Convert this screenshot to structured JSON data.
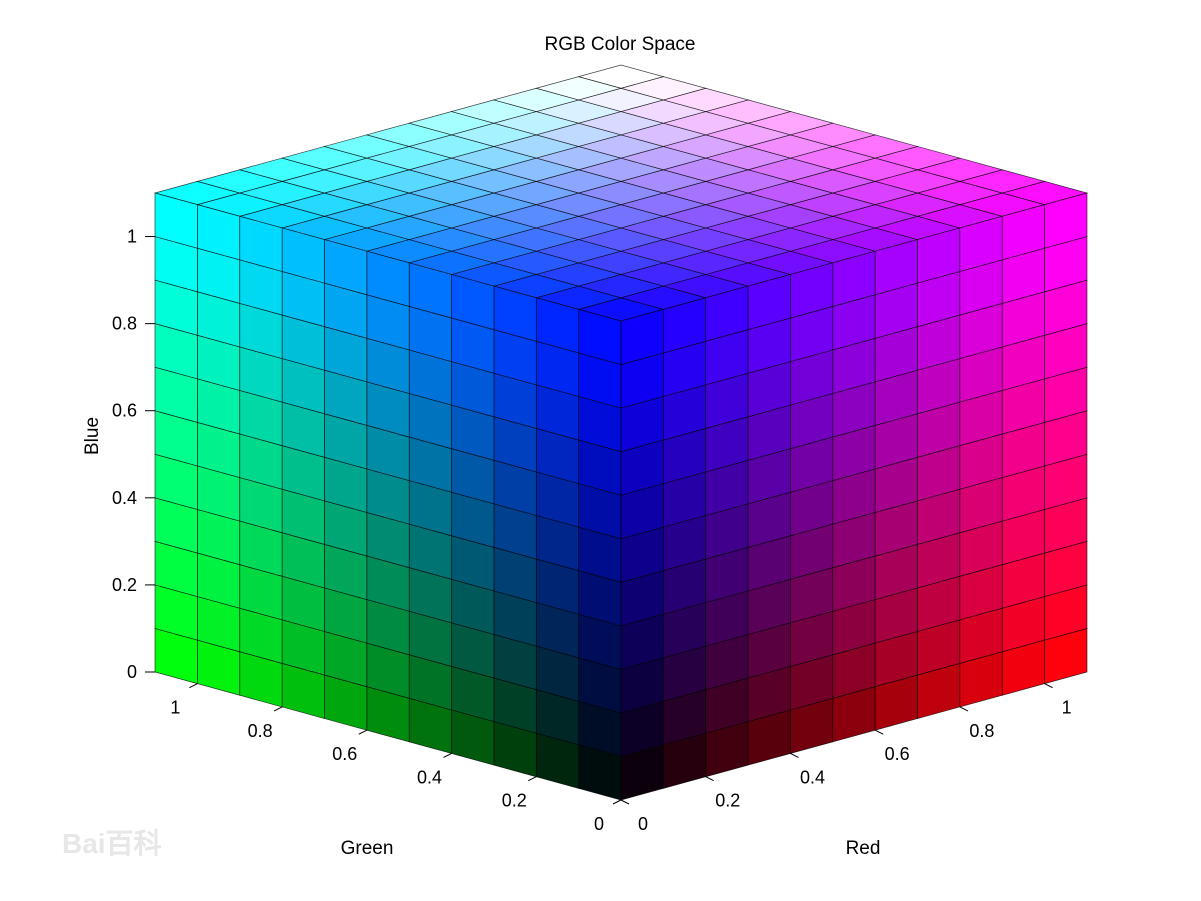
{
  "chart_data": {
    "type": "3d-surface",
    "title": "RGB Color Space",
    "xlabel": "Red",
    "ylabel": "Green",
    "zlabel": "Blue",
    "axis_range": [
      0,
      1.1
    ],
    "grid_step": 0.1,
    "red_ticks": [
      "0",
      "0.2",
      "0.4",
      "0.6",
      "0.8",
      "1"
    ],
    "green_ticks": [
      "0",
      "0.2",
      "0.4",
      "0.6",
      "0.8",
      "1"
    ],
    "blue_ticks": [
      "0",
      "0.2",
      "0.4",
      "0.6",
      "0.8",
      "1"
    ],
    "tick_values": [
      0,
      0.2,
      0.4,
      0.6,
      0.8,
      1
    ],
    "faces": [
      "top (Blue = max)",
      "Red = 0",
      "Green = 0"
    ],
    "color_mapping": "cell color = (Red, Green, Blue), clipped to 1",
    "edge_color": "#000000"
  },
  "watermark": "Bai百科"
}
